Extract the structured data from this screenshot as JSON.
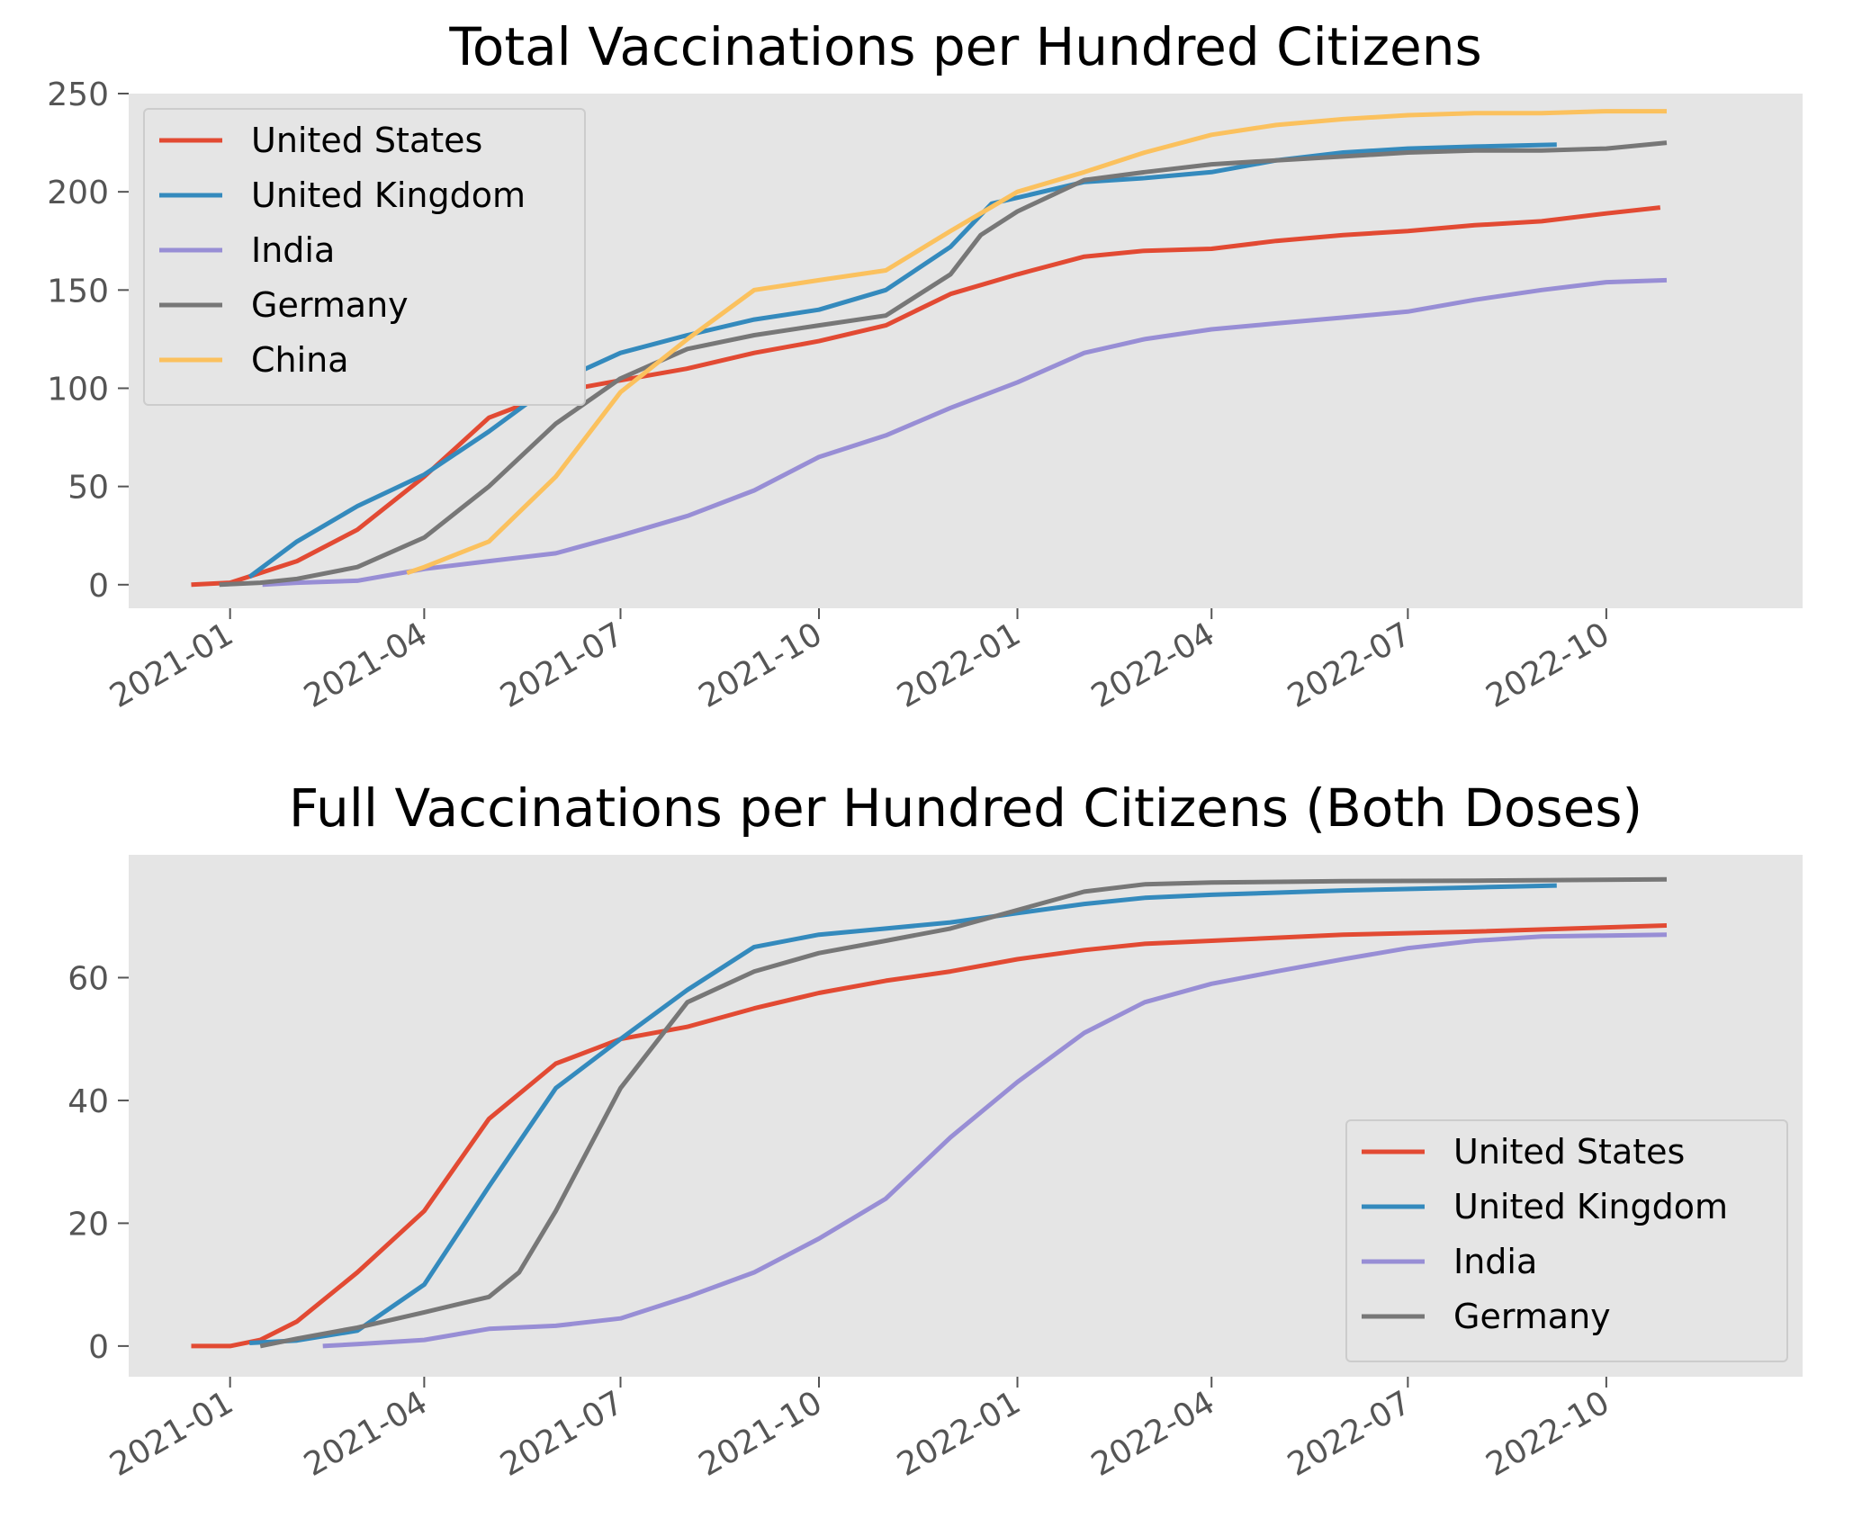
{
  "chart_data": [
    {
      "type": "line",
      "title": "Total Vaccinations per Hundred Citizens",
      "xlabel": "",
      "ylabel": "",
      "xlim": [
        "2020-11-15",
        "2022-12-31"
      ],
      "ylim": [
        -12,
        250
      ],
      "yticks": [
        0,
        50,
        100,
        150,
        200,
        250
      ],
      "xticks": [
        "2021-01",
        "2021-04",
        "2021-07",
        "2021-10",
        "2022-01",
        "2022-04",
        "2022-07",
        "2022-10"
      ],
      "grid": false,
      "legend_position": "upper-left",
      "series": [
        {
          "name": "United States",
          "color": "#E24A33",
          "x": [
            "2020-12-14",
            "2021-01-01",
            "2021-02-01",
            "2021-03-01",
            "2021-04-01",
            "2021-05-01",
            "2021-06-01",
            "2021-07-01",
            "2021-08-01",
            "2021-09-01",
            "2021-10-01",
            "2021-11-01",
            "2021-12-01",
            "2022-01-01",
            "2022-02-01",
            "2022-03-01",
            "2022-04-01",
            "2022-05-01",
            "2022-06-01",
            "2022-07-01",
            "2022-08-01",
            "2022-09-01",
            "2022-10-01",
            "2022-10-26"
          ],
          "y": [
            0,
            1,
            12,
            28,
            55,
            85,
            98,
            104,
            110,
            118,
            124,
            132,
            148,
            158,
            167,
            170,
            171,
            175,
            178,
            180,
            183,
            185,
            189,
            192
          ]
        },
        {
          "name": "United Kingdom",
          "color": "#348ABD",
          "x": [
            "2021-01-10",
            "2021-02-01",
            "2021-03-01",
            "2021-04-01",
            "2021-05-01",
            "2021-06-01",
            "2021-07-01",
            "2021-08-01",
            "2021-09-01",
            "2021-10-01",
            "2021-11-01",
            "2021-12-01",
            "2021-12-20",
            "2022-01-01",
            "2022-02-01",
            "2022-03-01",
            "2022-04-01",
            "2022-05-01",
            "2022-06-01",
            "2022-07-01",
            "2022-08-01",
            "2022-09-08"
          ],
          "y": [
            4,
            22,
            40,
            56,
            78,
            103,
            118,
            127,
            135,
            140,
            150,
            172,
            194,
            197,
            205,
            207,
            210,
            216,
            220,
            222,
            223,
            224
          ]
        },
        {
          "name": "India",
          "color": "#988ED5",
          "x": [
            "2021-01-16",
            "2021-02-01",
            "2021-03-01",
            "2021-04-01",
            "2021-05-01",
            "2021-06-01",
            "2021-07-01",
            "2021-08-01",
            "2021-09-01",
            "2021-10-01",
            "2021-11-01",
            "2021-12-01",
            "2022-01-01",
            "2022-02-01",
            "2022-03-01",
            "2022-04-01",
            "2022-05-01",
            "2022-06-01",
            "2022-07-01",
            "2022-08-01",
            "2022-09-01",
            "2022-10-01",
            "2022-10-29"
          ],
          "y": [
            0,
            1,
            2,
            8,
            12,
            16,
            25,
            35,
            48,
            65,
            76,
            90,
            103,
            118,
            125,
            130,
            133,
            136,
            139,
            145,
            150,
            154,
            155
          ]
        },
        {
          "name": "Germany",
          "color": "#777777",
          "x": [
            "2020-12-27",
            "2021-01-15",
            "2021-02-01",
            "2021-03-01",
            "2021-04-01",
            "2021-05-01",
            "2021-06-01",
            "2021-07-01",
            "2021-08-01",
            "2021-09-01",
            "2021-10-01",
            "2021-11-01",
            "2021-12-01",
            "2021-12-15",
            "2022-01-01",
            "2022-02-01",
            "2022-03-01",
            "2022-04-01",
            "2022-05-01",
            "2022-06-01",
            "2022-07-01",
            "2022-08-01",
            "2022-09-01",
            "2022-10-01",
            "2022-10-29"
          ],
          "y": [
            0,
            1,
            3,
            9,
            24,
            50,
            82,
            105,
            120,
            127,
            132,
            137,
            158,
            178,
            190,
            206,
            210,
            214,
            216,
            218,
            220,
            221,
            221,
            222,
            225
          ]
        },
        {
          "name": "China",
          "color": "#FBC15E",
          "x": [
            "2021-03-24",
            "2021-04-01",
            "2021-05-01",
            "2021-06-01",
            "2021-07-01",
            "2021-08-01",
            "2021-09-01",
            "2021-10-01",
            "2021-11-01",
            "2021-12-01",
            "2022-01-01",
            "2022-02-01",
            "2022-03-01",
            "2022-04-01",
            "2022-05-01",
            "2022-06-01",
            "2022-07-01",
            "2022-08-01",
            "2022-09-01",
            "2022-10-01",
            "2022-10-29"
          ],
          "y": [
            6,
            9,
            22,
            55,
            98,
            125,
            150,
            155,
            160,
            180,
            200,
            210,
            220,
            229,
            234,
            237,
            239,
            240,
            240,
            241,
            241
          ]
        }
      ]
    },
    {
      "type": "line",
      "title": "Full Vaccinations per Hundred Citizens (Both Doses)",
      "xlabel": "",
      "ylabel": "",
      "xlim": [
        "2020-11-15",
        "2022-12-31"
      ],
      "ylim": [
        -5,
        80
      ],
      "yticks": [
        0,
        20,
        40,
        60
      ],
      "xticks": [
        "2021-01",
        "2021-04",
        "2021-07",
        "2021-10",
        "2022-01",
        "2022-04",
        "2022-07",
        "2022-10"
      ],
      "grid": false,
      "legend_position": "lower-right",
      "series": [
        {
          "name": "United States",
          "color": "#E24A33",
          "x": [
            "2020-12-14",
            "2021-01-01",
            "2021-01-15",
            "2021-02-01",
            "2021-03-01",
            "2021-04-01",
            "2021-05-01",
            "2021-06-01",
            "2021-07-01",
            "2021-08-01",
            "2021-09-01",
            "2021-10-01",
            "2021-11-01",
            "2021-12-01",
            "2022-01-01",
            "2022-02-01",
            "2022-03-01",
            "2022-04-01",
            "2022-06-01",
            "2022-08-01",
            "2022-10-29"
          ],
          "y": [
            0,
            0,
            1,
            4,
            12,
            22,
            37,
            46,
            50,
            52,
            55,
            57.5,
            59.5,
            61,
            63,
            64.5,
            65.5,
            66,
            67,
            67.5,
            68.5
          ]
        },
        {
          "name": "United Kingdom",
          "color": "#348ABD",
          "x": [
            "2021-01-10",
            "2021-02-01",
            "2021-03-01",
            "2021-04-01",
            "2021-05-01",
            "2021-06-01",
            "2021-07-01",
            "2021-08-01",
            "2021-09-01",
            "2021-10-01",
            "2021-11-01",
            "2021-12-01",
            "2022-01-01",
            "2022-02-01",
            "2022-03-01",
            "2022-04-01",
            "2022-06-01",
            "2022-08-01",
            "2022-09-08"
          ],
          "y": [
            0.5,
            0.9,
            2.5,
            10,
            26,
            42,
            50,
            58,
            65,
            67,
            68,
            69,
            70.5,
            72,
            73,
            73.5,
            74.2,
            74.7,
            75
          ]
        },
        {
          "name": "India",
          "color": "#988ED5",
          "x": [
            "2021-02-13",
            "2021-03-01",
            "2021-04-01",
            "2021-05-01",
            "2021-06-01",
            "2021-07-01",
            "2021-08-01",
            "2021-09-01",
            "2021-10-01",
            "2021-11-01",
            "2021-12-01",
            "2022-01-01",
            "2022-02-01",
            "2022-03-01",
            "2022-04-01",
            "2022-05-01",
            "2022-06-01",
            "2022-07-01",
            "2022-08-01",
            "2022-09-01",
            "2022-10-29"
          ],
          "y": [
            0,
            0.3,
            1,
            2.8,
            3.3,
            4.5,
            8,
            12,
            17.5,
            24,
            34,
            43,
            51,
            56,
            59,
            61,
            63,
            64.8,
            66,
            66.7,
            67
          ]
        },
        {
          "name": "Germany",
          "color": "#777777",
          "x": [
            "2021-01-15",
            "2021-02-01",
            "2021-03-01",
            "2021-04-01",
            "2021-05-01",
            "2021-05-15",
            "2021-06-01",
            "2021-07-01",
            "2021-08-01",
            "2021-09-01",
            "2021-10-01",
            "2021-11-01",
            "2021-12-01",
            "2022-01-01",
            "2022-02-01",
            "2022-03-01",
            "2022-04-01",
            "2022-06-01",
            "2022-08-01",
            "2022-10-29"
          ],
          "y": [
            0,
            1.2,
            3,
            5.5,
            8,
            12,
            22,
            42,
            56,
            61,
            64,
            66,
            68,
            71,
            74,
            75.2,
            75.5,
            75.7,
            75.8,
            76
          ]
        }
      ]
    }
  ]
}
